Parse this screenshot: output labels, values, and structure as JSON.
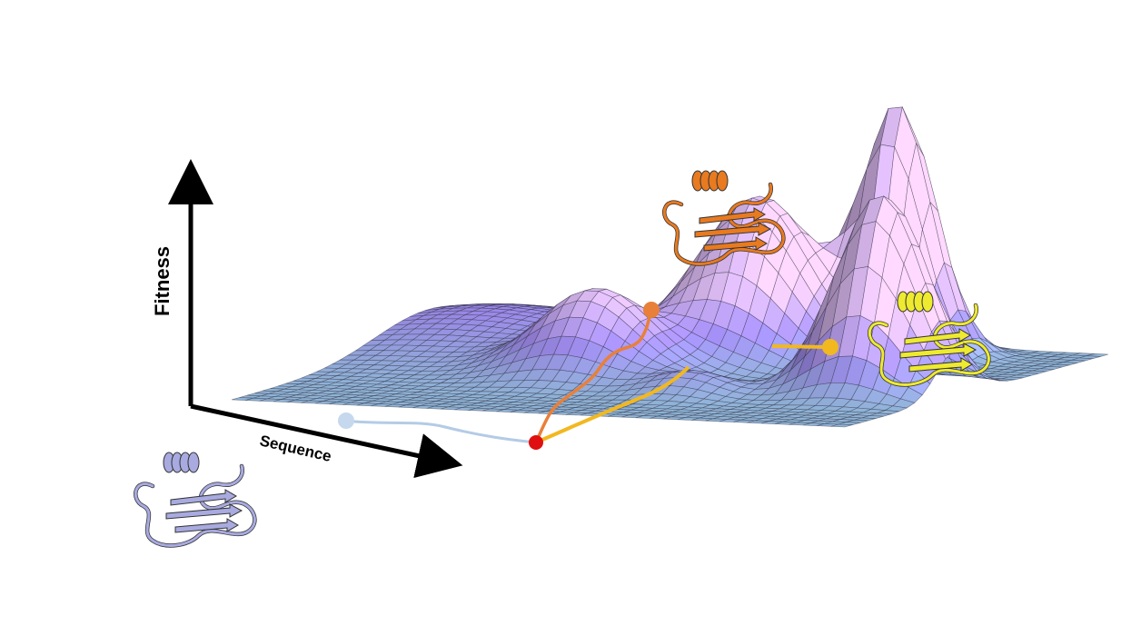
{
  "axes": {
    "y_label": "Fitness",
    "x_label": "Sequence"
  },
  "colors": {
    "axis": "#000000",
    "surface_low": "#8fb3d6",
    "surface_mid": "#9a86e6",
    "surface_high": "#d9b8f0",
    "grid": "#2a2a3a",
    "start_path": "#b4cbe6",
    "start_node": "#c6d8ee",
    "branch_point": "#e01010",
    "orange_path": "#e8803a",
    "yellow_path": "#f2b820",
    "protein_start": "#a8aae0",
    "protein_orange": "#e87a20",
    "protein_yellow": "#eeea30"
  },
  "icons": {
    "protein_start": "protein-ribbon-icon",
    "protein_orange": "protein-ribbon-icon",
    "protein_yellow": "protein-ribbon-icon"
  }
}
